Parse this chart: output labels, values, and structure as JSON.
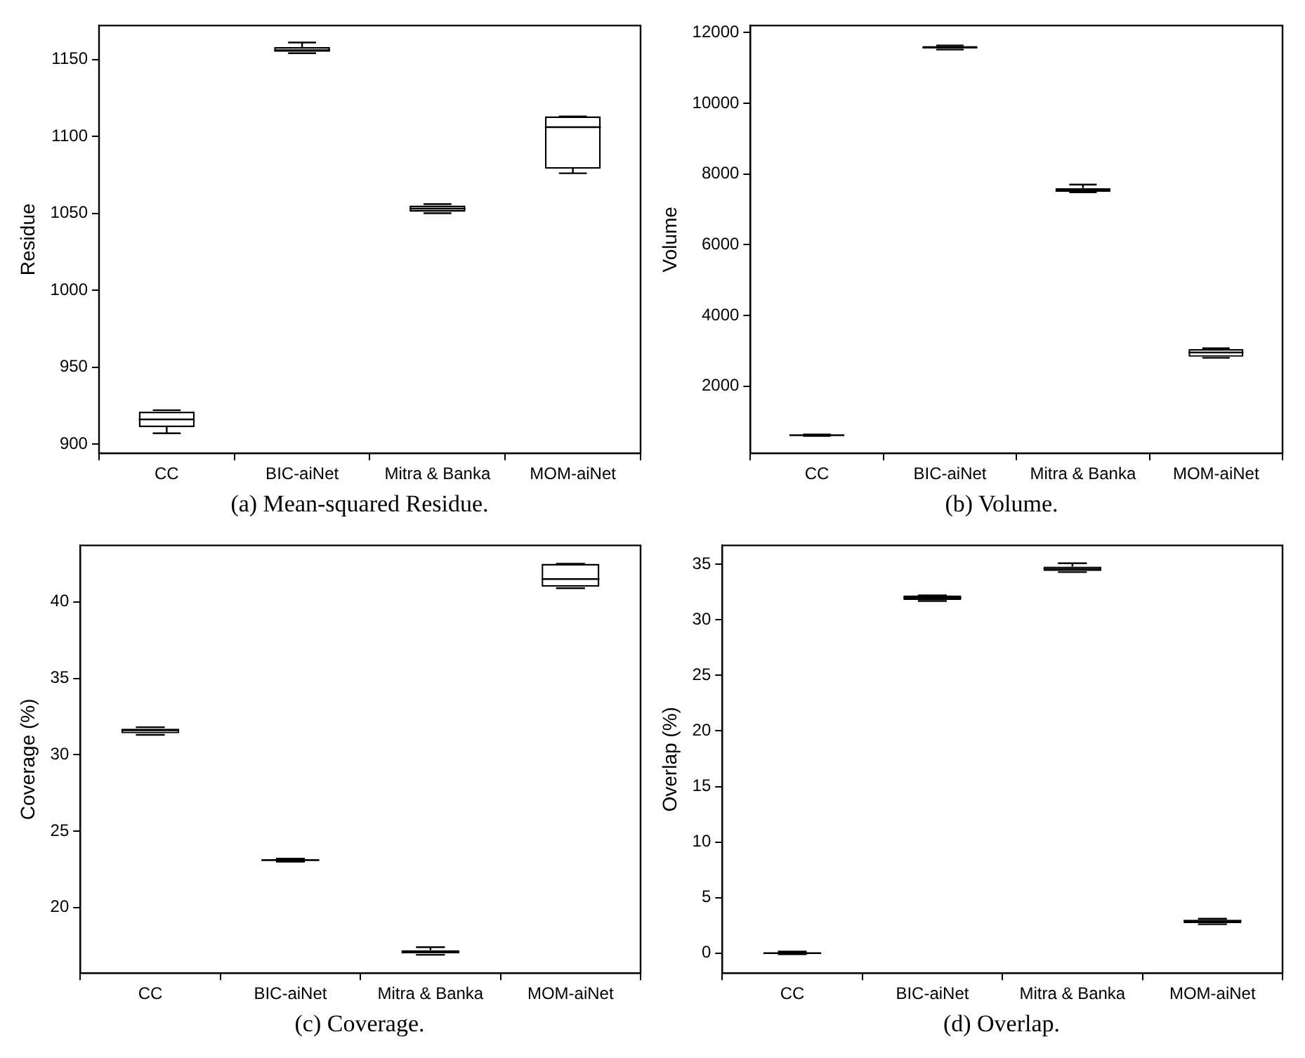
{
  "chart_data": [
    {
      "type": "box",
      "title": "(a) Mean-squared Residue.",
      "ylabel": "Residue",
      "categories": [
        "CC",
        "BIC-aiNet",
        "Mitra & Banka",
        "MOM-aiNet"
      ],
      "ylim": [
        894,
        1172
      ],
      "yticks": [
        900,
        950,
        1000,
        1050,
        1100,
        1150
      ],
      "grid": false,
      "legend": false,
      "boxes": [
        {
          "low": 907,
          "q1": 911,
          "median": 916,
          "q3": 921,
          "high": 922
        },
        {
          "low": 1154,
          "q1": 1155,
          "median": 1156,
          "q3": 1158,
          "high": 1161
        },
        {
          "low": 1050,
          "q1": 1051,
          "median": 1053,
          "q3": 1055,
          "high": 1056
        },
        {
          "low": 1076,
          "q1": 1079,
          "median": 1106,
          "q3": 1113,
          "high": 1113
        }
      ]
    },
    {
      "type": "box",
      "title": "(b) Volume.",
      "ylabel": "Volume",
      "categories": [
        "CC",
        "BIC-aiNet",
        "Mitra & Banka",
        "MOM-aiNet"
      ],
      "ylim": [
        100,
        12200
      ],
      "yticks": [
        2000,
        4000,
        6000,
        8000,
        10000,
        12000
      ],
      "grid": false,
      "legend": false,
      "boxes": [
        {
          "low": 590,
          "q1": 600,
          "median": 610,
          "q3": 620,
          "high": 630
        },
        {
          "low": 11520,
          "q1": 11550,
          "median": 11580,
          "q3": 11620,
          "high": 11640
        },
        {
          "low": 7480,
          "q1": 7500,
          "median": 7540,
          "q3": 7600,
          "high": 7700
        },
        {
          "low": 2800,
          "q1": 2830,
          "median": 2950,
          "q3": 3050,
          "high": 3070
        }
      ]
    },
    {
      "type": "box",
      "title": "(c) Coverage.",
      "ylabel": "Coverage (%)",
      "categories": [
        "CC",
        "BIC-aiNet",
        "Mitra & Banka",
        "MOM-aiNet"
      ],
      "ylim": [
        15.7,
        43.7
      ],
      "yticks": [
        20,
        25,
        30,
        35,
        40
      ],
      "grid": false,
      "legend": false,
      "boxes": [
        {
          "low": 31.3,
          "q1": 31.4,
          "median": 31.6,
          "q3": 31.7,
          "high": 31.8
        },
        {
          "low": 23.0,
          "q1": 23.05,
          "median": 23.1,
          "q3": 23.15,
          "high": 23.2
        },
        {
          "low": 16.9,
          "q1": 17.0,
          "median": 17.1,
          "q3": 17.2,
          "high": 17.4
        },
        {
          "low": 40.9,
          "q1": 41.0,
          "median": 41.5,
          "q3": 42.5,
          "high": 42.5
        }
      ]
    },
    {
      "type": "box",
      "title": "(d) Overlap.",
      "ylabel": "Overlap (%)",
      "categories": [
        "CC",
        "BIC-aiNet",
        "Mitra & Banka",
        "MOM-aiNet"
      ],
      "ylim": [
        -1.8,
        36.7
      ],
      "yticks": [
        0,
        5,
        10,
        15,
        20,
        25,
        30,
        35
      ],
      "grid": false,
      "legend": false,
      "boxes": [
        {
          "low": -0.1,
          "q1": -0.05,
          "median": 0,
          "q3": 0.05,
          "high": 0.15
        },
        {
          "low": 31.7,
          "q1": 31.8,
          "median": 32.0,
          "q3": 32.2,
          "high": 32.2
        },
        {
          "low": 34.3,
          "q1": 34.4,
          "median": 34.6,
          "q3": 34.8,
          "high": 35.1
        },
        {
          "low": 2.6,
          "q1": 2.7,
          "median": 2.9,
          "q3": 3.0,
          "high": 3.1
        }
      ]
    }
  ]
}
